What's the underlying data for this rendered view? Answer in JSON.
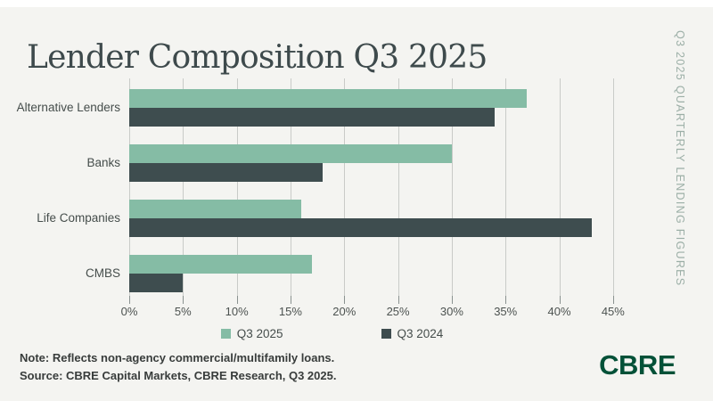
{
  "page": {
    "title": "Lender Composition Q3 2025",
    "side_label": "Q3 2025 QUARTERLY LENDING FIGURES",
    "note_line1": "Note: Reflects non-agency commercial/multifamily loans.",
    "note_line2": "Source: CBRE Capital Markets, CBRE Research, Q3 2025.",
    "logo_text": "CBRE"
  },
  "colors": {
    "background": "#f4f4f1",
    "q3_2025_green": "#85bca5",
    "q3_2024_slate": "#3e4d4f",
    "title_text": "#3e4a4c",
    "side_label_text": "#9cafa7",
    "gridline": "#c9cbc8",
    "cbre_logo_green": "#035138"
  },
  "chart_data": {
    "type": "bar",
    "orientation": "horizontal",
    "title": "Lender Composition Q3 2025",
    "categories": [
      "Alternative Lenders",
      "Banks",
      "Life Companies",
      "CMBS"
    ],
    "series": [
      {
        "name": "Q3 2025",
        "color": "#85bca5",
        "values": [
          37,
          30,
          16,
          17
        ]
      },
      {
        "name": "Q3 2024",
        "color": "#3e4d4f",
        "values": [
          34,
          18,
          43,
          5
        ]
      }
    ],
    "value_unit": "%",
    "x_ticks": [
      "0%",
      "5%",
      "10%",
      "15%",
      "20%",
      "25%",
      "30%",
      "35%",
      "40%",
      "45%"
    ],
    "x_tick_values": [
      0,
      5,
      10,
      15,
      20,
      25,
      30,
      35,
      40,
      45
    ],
    "xlim": [
      0,
      47.5
    ],
    "grid": true,
    "legend_position": "bottom"
  }
}
